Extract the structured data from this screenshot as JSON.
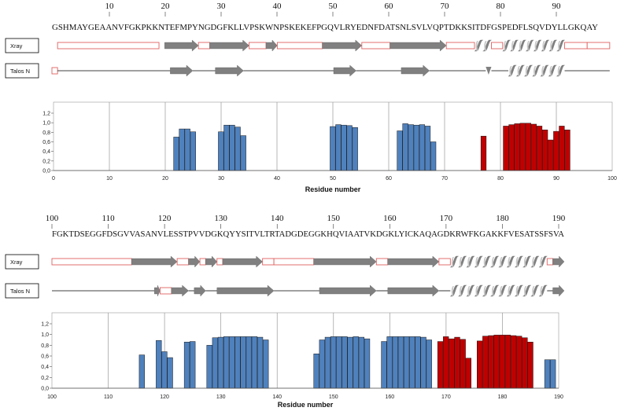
{
  "panels": [
    {
      "residue_numbers": [
        "10",
        "20",
        "30",
        "40",
        "50",
        "60",
        "70",
        "80",
        "90"
      ],
      "sequence": "GSHMAYGEAANVFGKPKKNTEFMPYNGDGFKLLVPSKWNPSKEKEFPGQVLRYEDNFDATSNLSVLVQPTDKKSITDFGSPEDFLSQVDYLLGKQAY",
      "tracks": [
        {
          "label": "Xray",
          "segments": [
            {
              "t": "coil",
              "a": 1,
              "b": 19
            },
            {
              "t": "strand",
              "a": 20,
              "b": 26
            },
            {
              "t": "coil",
              "a": 26,
              "b": 28
            },
            {
              "t": "strand",
              "a": 28,
              "b": 35
            },
            {
              "t": "coil",
              "a": 35,
              "b": 38
            },
            {
              "t": "strand",
              "a": 38,
              "b": 40
            },
            {
              "t": "coil",
              "a": 40,
              "b": 48
            },
            {
              "t": "strand",
              "a": 48,
              "b": 55
            },
            {
              "t": "coil",
              "a": 55,
              "b": 60
            },
            {
              "t": "strand",
              "a": 60,
              "b": 70
            },
            {
              "t": "coil",
              "a": 70,
              "b": 75
            },
            {
              "t": "helix",
              "a": 75,
              "b": 78
            },
            {
              "t": "coil",
              "a": 78,
              "b": 80
            },
            {
              "t": "helix",
              "a": 80,
              "b": 91
            },
            {
              "t": "coil",
              "a": 91,
              "b": 95
            },
            {
              "t": "coil",
              "a": 95,
              "b": 99
            }
          ]
        },
        {
          "label": "Talos N",
          "segments": [
            {
              "t": "coil",
              "a": 0,
              "b": 1
            },
            {
              "t": "line",
              "a": 1,
              "b": 21
            },
            {
              "t": "strand",
              "a": 21,
              "b": 25
            },
            {
              "t": "line",
              "a": 25,
              "b": 29
            },
            {
              "t": "strand",
              "a": 29,
              "b": 34
            },
            {
              "t": "line",
              "a": 34,
              "b": 50
            },
            {
              "t": "strand",
              "a": 50,
              "b": 54
            },
            {
              "t": "line",
              "a": 54,
              "b": 62
            },
            {
              "t": "strand",
              "a": 62,
              "b": 67
            },
            {
              "t": "line",
              "a": 67,
              "b": 77
            },
            {
              "t": "tick",
              "a": 77,
              "b": 78
            },
            {
              "t": "line",
              "a": 78,
              "b": 81
            },
            {
              "t": "helix",
              "a": 81,
              "b": 91
            },
            {
              "t": "line",
              "a": 91,
              "b": 99
            }
          ]
        }
      ],
      "chart": {
        "type": "bar",
        "xlim": [
          0,
          100
        ],
        "ylim": [
          0,
          1.2
        ],
        "xticks": [
          "0",
          "10",
          "20",
          "30",
          "40",
          "50",
          "60",
          "70",
          "80",
          "90",
          "100"
        ],
        "yticks": [
          "0,0",
          "0,2",
          "0,4",
          "0,6",
          "0,8",
          "1,0",
          "1,2"
        ],
        "grid_x": [
          10,
          20,
          30,
          40,
          50,
          60,
          70,
          80,
          90
        ],
        "xlabel": "Residue number",
        "bars": [
          {
            "x": 22,
            "y": 0.7,
            "c": "b"
          },
          {
            "x": 23,
            "y": 0.87,
            "c": "b"
          },
          {
            "x": 24,
            "y": 0.87,
            "c": "b"
          },
          {
            "x": 25,
            "y": 0.81,
            "c": "b"
          },
          {
            "x": 30,
            "y": 0.81,
            "c": "b"
          },
          {
            "x": 31,
            "y": 0.95,
            "c": "b"
          },
          {
            "x": 32,
            "y": 0.95,
            "c": "b"
          },
          {
            "x": 33,
            "y": 0.91,
            "c": "b"
          },
          {
            "x": 34,
            "y": 0.73,
            "c": "b"
          },
          {
            "x": 50,
            "y": 0.92,
            "c": "b"
          },
          {
            "x": 51,
            "y": 0.96,
            "c": "b"
          },
          {
            "x": 52,
            "y": 0.95,
            "c": "b"
          },
          {
            "x": 53,
            "y": 0.94,
            "c": "b"
          },
          {
            "x": 54,
            "y": 0.9,
            "c": "b"
          },
          {
            "x": 62,
            "y": 0.83,
            "c": "b"
          },
          {
            "x": 63,
            "y": 0.98,
            "c": "b"
          },
          {
            "x": 64,
            "y": 0.96,
            "c": "b"
          },
          {
            "x": 65,
            "y": 0.95,
            "c": "b"
          },
          {
            "x": 66,
            "y": 0.96,
            "c": "b"
          },
          {
            "x": 67,
            "y": 0.93,
            "c": "b"
          },
          {
            "x": 68,
            "y": 0.6,
            "c": "b"
          },
          {
            "x": 77,
            "y": 0.72,
            "c": "r"
          },
          {
            "x": 81,
            "y": 0.93,
            "c": "r"
          },
          {
            "x": 82,
            "y": 0.96,
            "c": "r"
          },
          {
            "x": 83,
            "y": 0.98,
            "c": "r"
          },
          {
            "x": 84,
            "y": 0.99,
            "c": "r"
          },
          {
            "x": 85,
            "y": 0.99,
            "c": "r"
          },
          {
            "x": 86,
            "y": 0.97,
            "c": "r"
          },
          {
            "x": 87,
            "y": 0.93,
            "c": "r"
          },
          {
            "x": 88,
            "y": 0.85,
            "c": "r"
          },
          {
            "x": 89,
            "y": 0.64,
            "c": "r"
          },
          {
            "x": 90,
            "y": 0.82,
            "c": "r"
          },
          {
            "x": 91,
            "y": 0.93,
            "c": "r"
          },
          {
            "x": 92,
            "y": 0.85,
            "c": "r"
          }
        ]
      }
    },
    {
      "residue_numbers": [
        "100",
        "110",
        "120",
        "130",
        "140",
        "150",
        "160",
        "170",
        "180",
        "190"
      ],
      "sequence": "FGKTDSEGGFDSGVVASANVLESSTPVVDGKQYYSITVLTRTADGDEGGKHQVIAATVKDGKLYICKAQAGDKRWFKGAKKFVESATSSFSVA",
      "tracks": [
        {
          "label": "Xray",
          "segments": [
            {
              "t": "coil",
              "a": 100,
              "b": 114
            },
            {
              "t": "strand",
              "a": 114,
              "b": 122
            },
            {
              "t": "coil",
              "a": 122,
              "b": 124
            },
            {
              "t": "strand",
              "a": 124,
              "b": 126
            },
            {
              "t": "coil",
              "a": 126,
              "b": 127
            },
            {
              "t": "strand",
              "a": 127,
              "b": 129
            },
            {
              "t": "coil",
              "a": 129,
              "b": 130
            },
            {
              "t": "strand",
              "a": 130,
              "b": 137
            },
            {
              "t": "coil",
              "a": 137,
              "b": 139
            },
            {
              "t": "coil",
              "a": 139,
              "b": 146
            },
            {
              "t": "strand",
              "a": 146,
              "b": 157
            },
            {
              "t": "coil",
              "a": 157,
              "b": 159
            },
            {
              "t": "strand",
              "a": 159,
              "b": 168
            },
            {
              "t": "coil",
              "a": 168,
              "b": 170
            },
            {
              "t": "helix",
              "a": 170,
              "b": 187
            },
            {
              "t": "coil",
              "a": 187,
              "b": 188
            },
            {
              "t": "strand",
              "a": 188,
              "b": 190
            }
          ]
        },
        {
          "label": "Talos N",
          "segments": [
            {
              "t": "line",
              "a": 100,
              "b": 118
            },
            {
              "t": "strand",
              "a": 118,
              "b": 119
            },
            {
              "t": "coil",
              "a": 119,
              "b": 121
            },
            {
              "t": "strand",
              "a": 121,
              "b": 124
            },
            {
              "t": "line",
              "a": 124,
              "b": 125
            },
            {
              "t": "strand",
              "a": 125,
              "b": 127
            },
            {
              "t": "line",
              "a": 127,
              "b": 129
            },
            {
              "t": "strand",
              "a": 129,
              "b": 139
            },
            {
              "t": "line",
              "a": 139,
              "b": 147
            },
            {
              "t": "strand",
              "a": 147,
              "b": 157
            },
            {
              "t": "line",
              "a": 157,
              "b": 159
            },
            {
              "t": "strand",
              "a": 159,
              "b": 168
            },
            {
              "t": "line",
              "a": 168,
              "b": 170
            },
            {
              "t": "helix",
              "a": 170,
              "b": 187
            },
            {
              "t": "line",
              "a": 187,
              "b": 188
            },
            {
              "t": "strand",
              "a": 188,
              "b": 190
            }
          ]
        }
      ],
      "chart": {
        "type": "bar",
        "xlim": [
          100,
          190
        ],
        "ylim": [
          0,
          1.2
        ],
        "xticks": [
          "100",
          "110",
          "120",
          "130",
          "140",
          "150",
          "160",
          "170",
          "180",
          "190"
        ],
        "yticks": [
          "0,0",
          "0,2",
          "0,4",
          "0,6",
          "0,8",
          "1,0",
          "1,2"
        ],
        "grid_x": [
          110,
          120,
          130,
          140,
          150,
          160,
          170,
          180
        ],
        "xlabel": "Residue number",
        "bars": [
          {
            "x": 116,
            "y": 0.62,
            "c": "b"
          },
          {
            "x": 119,
            "y": 0.89,
            "c": "b"
          },
          {
            "x": 120,
            "y": 0.68,
            "c": "b"
          },
          {
            "x": 121,
            "y": 0.57,
            "c": "b"
          },
          {
            "x": 124,
            "y": 0.86,
            "c": "b"
          },
          {
            "x": 125,
            "y": 0.87,
            "c": "b"
          },
          {
            "x": 128,
            "y": 0.8,
            "c": "b"
          },
          {
            "x": 129,
            "y": 0.94,
            "c": "b"
          },
          {
            "x": 130,
            "y": 0.95,
            "c": "b"
          },
          {
            "x": 131,
            "y": 0.96,
            "c": "b"
          },
          {
            "x": 132,
            "y": 0.96,
            "c": "b"
          },
          {
            "x": 133,
            "y": 0.96,
            "c": "b"
          },
          {
            "x": 134,
            "y": 0.96,
            "c": "b"
          },
          {
            "x": 135,
            "y": 0.96,
            "c": "b"
          },
          {
            "x": 136,
            "y": 0.96,
            "c": "b"
          },
          {
            "x": 137,
            "y": 0.95,
            "c": "b"
          },
          {
            "x": 138,
            "y": 0.9,
            "c": "b"
          },
          {
            "x": 147,
            "y": 0.64,
            "c": "b"
          },
          {
            "x": 148,
            "y": 0.9,
            "c": "b"
          },
          {
            "x": 149,
            "y": 0.95,
            "c": "b"
          },
          {
            "x": 150,
            "y": 0.96,
            "c": "b"
          },
          {
            "x": 151,
            "y": 0.96,
            "c": "b"
          },
          {
            "x": 152,
            "y": 0.96,
            "c": "b"
          },
          {
            "x": 153,
            "y": 0.95,
            "c": "b"
          },
          {
            "x": 154,
            "y": 0.96,
            "c": "b"
          },
          {
            "x": 155,
            "y": 0.95,
            "c": "b"
          },
          {
            "x": 156,
            "y": 0.92,
            "c": "b"
          },
          {
            "x": 159,
            "y": 0.87,
            "c": "b"
          },
          {
            "x": 160,
            "y": 0.96,
            "c": "b"
          },
          {
            "x": 161,
            "y": 0.96,
            "c": "b"
          },
          {
            "x": 162,
            "y": 0.96,
            "c": "b"
          },
          {
            "x": 163,
            "y": 0.96,
            "c": "b"
          },
          {
            "x": 164,
            "y": 0.96,
            "c": "b"
          },
          {
            "x": 165,
            "y": 0.96,
            "c": "b"
          },
          {
            "x": 166,
            "y": 0.95,
            "c": "b"
          },
          {
            "x": 167,
            "y": 0.9,
            "c": "b"
          },
          {
            "x": 169,
            "y": 0.87,
            "c": "r"
          },
          {
            "x": 170,
            "y": 0.96,
            "c": "r"
          },
          {
            "x": 171,
            "y": 0.92,
            "c": "r"
          },
          {
            "x": 172,
            "y": 0.95,
            "c": "r"
          },
          {
            "x": 173,
            "y": 0.91,
            "c": "r"
          },
          {
            "x": 174,
            "y": 0.56,
            "c": "r"
          },
          {
            "x": 176,
            "y": 0.88,
            "c": "r"
          },
          {
            "x": 177,
            "y": 0.97,
            "c": "r"
          },
          {
            "x": 178,
            "y": 0.98,
            "c": "r"
          },
          {
            "x": 179,
            "y": 0.99,
            "c": "r"
          },
          {
            "x": 180,
            "y": 0.99,
            "c": "r"
          },
          {
            "x": 181,
            "y": 0.99,
            "c": "r"
          },
          {
            "x": 182,
            "y": 0.98,
            "c": "r"
          },
          {
            "x": 183,
            "y": 0.97,
            "c": "r"
          },
          {
            "x": 184,
            "y": 0.94,
            "c": "r"
          },
          {
            "x": 185,
            "y": 0.86,
            "c": "r"
          },
          {
            "x": 188,
            "y": 0.53,
            "c": "b"
          },
          {
            "x": 189,
            "y": 0.53,
            "c": "b"
          }
        ]
      }
    }
  ],
  "colors": {
    "blue": "#4f81bd",
    "red": "#c00000",
    "coil_box": "#e06060",
    "shape": "#808080"
  }
}
